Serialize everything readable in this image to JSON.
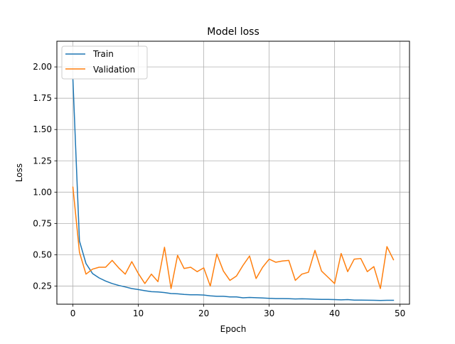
{
  "chart_data": {
    "type": "line",
    "title": "Model loss",
    "xlabel": "Epoch",
    "ylabel": "Loss",
    "xlim": [
      -2.45,
      51.45
    ],
    "ylim": [
      0.105,
      2.205
    ],
    "grid": true,
    "legend_position": "upper-left",
    "x_ticks": [
      0,
      10,
      20,
      30,
      40,
      50
    ],
    "y_ticks": [
      0.25,
      0.5,
      0.75,
      1.0,
      1.25,
      1.5,
      1.75,
      2.0
    ],
    "x_tick_labels": [
      "0",
      "10",
      "20",
      "30",
      "40",
      "50"
    ],
    "y_tick_labels": [
      "0.25",
      "0.50",
      "0.75",
      "1.00",
      "1.25",
      "1.50",
      "1.75",
      "2.00"
    ],
    "x": [
      0,
      1,
      2,
      3,
      4,
      5,
      6,
      7,
      8,
      9,
      10,
      11,
      12,
      13,
      14,
      15,
      16,
      17,
      18,
      19,
      20,
      21,
      22,
      23,
      24,
      25,
      26,
      27,
      28,
      29,
      30,
      31,
      32,
      33,
      34,
      35,
      36,
      37,
      38,
      39,
      40,
      41,
      42,
      43,
      44,
      45,
      46,
      47,
      48,
      49
    ],
    "series": [
      {
        "name": "Train",
        "color": "#1f77b4",
        "values": [
          1.9,
          0.61,
          0.43,
          0.35,
          0.315,
          0.29,
          0.27,
          0.255,
          0.243,
          0.23,
          0.222,
          0.213,
          0.205,
          0.203,
          0.198,
          0.19,
          0.188,
          0.183,
          0.18,
          0.18,
          0.178,
          0.172,
          0.168,
          0.168,
          0.163,
          0.163,
          0.156,
          0.159,
          0.157,
          0.155,
          0.152,
          0.15,
          0.15,
          0.149,
          0.147,
          0.148,
          0.147,
          0.145,
          0.143,
          0.143,
          0.142,
          0.14,
          0.142,
          0.138,
          0.138,
          0.137,
          0.136,
          0.135,
          0.136,
          0.136
        ]
      },
      {
        "name": "Validation",
        "color": "#ff7f0e",
        "values": [
          1.04,
          0.52,
          0.345,
          0.385,
          0.4,
          0.4,
          0.455,
          0.395,
          0.345,
          0.445,
          0.35,
          0.27,
          0.345,
          0.285,
          0.56,
          0.23,
          0.495,
          0.39,
          0.4,
          0.365,
          0.395,
          0.25,
          0.505,
          0.37,
          0.295,
          0.33,
          0.415,
          0.49,
          0.31,
          0.4,
          0.465,
          0.44,
          0.45,
          0.455,
          0.295,
          0.345,
          0.36,
          0.535,
          0.37,
          0.32,
          0.27,
          0.51,
          0.365,
          0.465,
          0.47,
          0.365,
          0.405,
          0.23,
          0.565,
          0.46
        ]
      }
    ]
  }
}
